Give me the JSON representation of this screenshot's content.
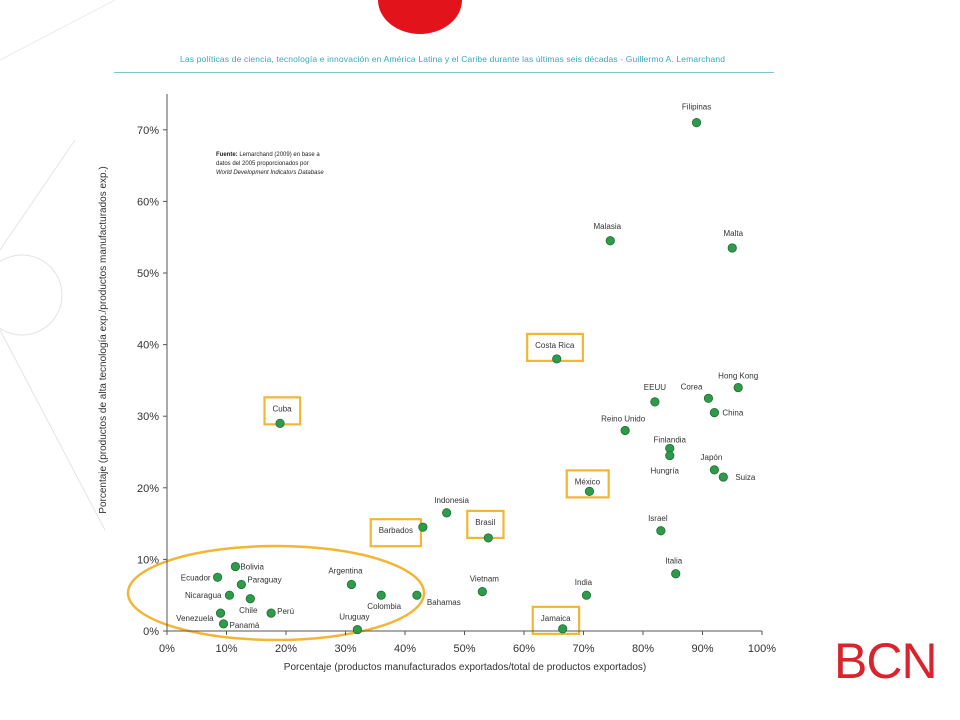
{
  "header": {
    "text": "Las políticas de ciencia, tecnología e innovación en América Latina y el Caribe durante las últimas seis décadas -  Guillermo A. Lemarchand"
  },
  "brand": {
    "logo_text": "BCN",
    "color": "#d9232d"
  },
  "chart_data": {
    "type": "scatter",
    "title": "",
    "xlabel": "Porcentaje (productos manufacturados exportados/total de productos exportados)",
    "ylabel": "Porcentaje (productos de alta tecnología exp./productos manufacturados exp.)",
    "xlim": [
      0,
      100
    ],
    "ylim": [
      0,
      75
    ],
    "x_ticks": [
      "0%",
      "10%",
      "20%",
      "30%",
      "40%",
      "50%",
      "60%",
      "70%",
      "80%",
      "90%",
      "100%"
    ],
    "y_ticks": [
      "0%",
      "10%",
      "20%",
      "30%",
      "40%",
      "50%",
      "60%",
      "70%"
    ],
    "grid": false,
    "marker_color": "#2e9b4a",
    "source_note": {
      "line1_bold": "Fuente:",
      "line1": " Lemarchand (2009) en base a",
      "line2": "datos del 2005 proporcionados por",
      "line3": "World Development Indicators Database"
    },
    "highlight_color": "#f2b634",
    "points": [
      {
        "label": "Filipinas",
        "x": 89,
        "y": 71
      },
      {
        "label": "Malasia",
        "x": 74.5,
        "y": 54.5
      },
      {
        "label": "Malta",
        "x": 95,
        "y": 53.5
      },
      {
        "label": "Costa Rica",
        "x": 65.5,
        "y": 38,
        "highlight": true
      },
      {
        "label": "Hong Kong",
        "x": 96,
        "y": 34
      },
      {
        "label": "Corea",
        "x": 91,
        "y": 32.5
      },
      {
        "label": "EEUU",
        "x": 82,
        "y": 32
      },
      {
        "label": "China",
        "x": 92,
        "y": 30.5
      },
      {
        "label": "Cuba",
        "x": 19,
        "y": 29,
        "highlight": true
      },
      {
        "label": "Reino Unido",
        "x": 77,
        "y": 28
      },
      {
        "label": "Finlandia",
        "x": 84.5,
        "y": 25.5
      },
      {
        "label": "Japón",
        "x": 92,
        "y": 22.5
      },
      {
        "label": "Hungría",
        "x": 84.5,
        "y": 24.5
      },
      {
        "label": "Suiza",
        "x": 93.5,
        "y": 21.5
      },
      {
        "label": "México",
        "x": 71,
        "y": 19.5,
        "highlight": true
      },
      {
        "label": "Indonesia",
        "x": 47,
        "y": 16.5
      },
      {
        "label": "Barbados",
        "x": 43,
        "y": 14.5,
        "highlight": true
      },
      {
        "label": "Israel",
        "x": 83,
        "y": 14
      },
      {
        "label": "Brasil",
        "x": 54,
        "y": 13,
        "highlight": true
      },
      {
        "label": "Bolivia",
        "x": 11.5,
        "y": 9
      },
      {
        "label": "Italia",
        "x": 85.5,
        "y": 8
      },
      {
        "label": "Ecuador",
        "x": 8.5,
        "y": 7.5
      },
      {
        "label": "Paraguay",
        "x": 12.5,
        "y": 6.5
      },
      {
        "label": "Argentina",
        "x": 31,
        "y": 6.5
      },
      {
        "label": "Vietnam",
        "x": 53,
        "y": 5.5
      },
      {
        "label": "Nicaragua",
        "x": 10.5,
        "y": 5
      },
      {
        "label": "Chile",
        "x": 14,
        "y": 4.5
      },
      {
        "label": "Colombia",
        "x": 36,
        "y": 5
      },
      {
        "label": "Bahamas",
        "x": 42,
        "y": 5
      },
      {
        "label": "India",
        "x": 70.5,
        "y": 5
      },
      {
        "label": "Venezuela",
        "x": 9,
        "y": 2.5
      },
      {
        "label": "Perú",
        "x": 17.5,
        "y": 2.5
      },
      {
        "label": "Panamá",
        "x": 9.5,
        "y": 1
      },
      {
        "label": "Uruguay",
        "x": 32,
        "y": 0.2
      },
      {
        "label": "Jamaica",
        "x": 66.5,
        "y": 0.3,
        "highlight": true
      }
    ]
  }
}
